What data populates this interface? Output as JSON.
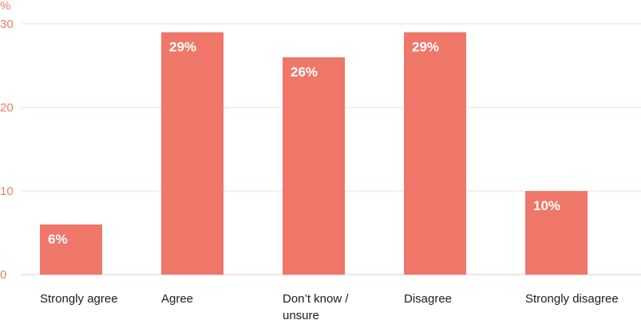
{
  "chart_data": {
    "type": "bar",
    "ylabel": "%",
    "categories": [
      [
        "Strongly agree"
      ],
      [
        "Agree"
      ],
      [
        "Don’t know /",
        "unsure"
      ],
      [
        "Disagree"
      ],
      [
        "Strongly disagree"
      ]
    ],
    "values": [
      6,
      29,
      26,
      29,
      10
    ],
    "data_labels": [
      "6%",
      "29%",
      "26%",
      "29%",
      "10%"
    ],
    "yticks": [
      0,
      10,
      20,
      30
    ],
    "ytick_labels": [
      "0",
      "10",
      "20",
      "30"
    ],
    "ylim": [
      0,
      30
    ],
    "grid": true,
    "colors": {
      "bar": "#ef7769",
      "tick": "#ef7b6c",
      "grid": "#f6ddd8"
    }
  }
}
